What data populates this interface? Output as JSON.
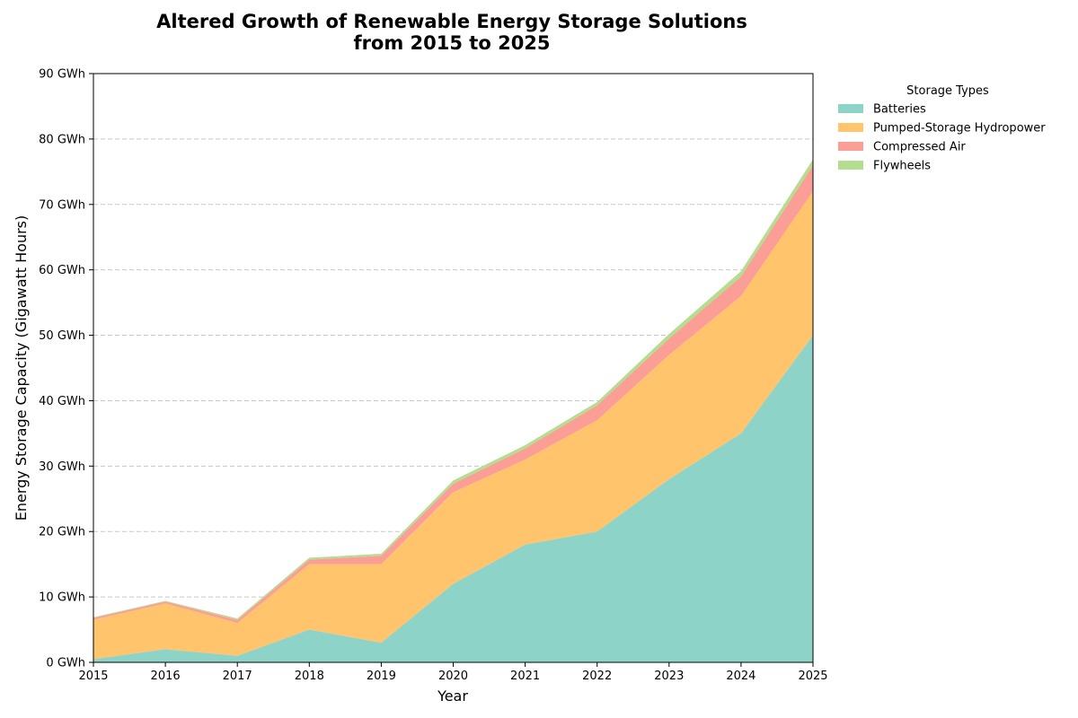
{
  "chart_data": {
    "type": "area",
    "stacked": true,
    "title_lines": [
      "Altered Growth of Renewable Energy Storage Solutions",
      "from 2015 to 2025"
    ],
    "xlabel": "Year",
    "ylabel": "Energy Storage Capacity (Gigawatt Hours)",
    "x": [
      2015,
      2016,
      2017,
      2018,
      2019,
      2020,
      2021,
      2022,
      2023,
      2024,
      2025
    ],
    "x_tick_labels": [
      "2015",
      "2016",
      "2017",
      "2018",
      "2019",
      "2020",
      "2021",
      "2022",
      "2023",
      "2024",
      "2025"
    ],
    "ylim": [
      0,
      90
    ],
    "y_ticks": [
      0,
      10,
      20,
      30,
      40,
      50,
      60,
      70,
      80,
      90
    ],
    "y_tick_labels": [
      "0 GWh",
      "10 GWh",
      "20 GWh",
      "30 GWh",
      "40 GWh",
      "50 GWh",
      "60 GWh",
      "70 GWh",
      "80 GWh",
      "90 GWh"
    ],
    "grid": "horizontal dashed",
    "legend": {
      "title": "Storage Types",
      "placement": "outside-top-right"
    },
    "series": [
      {
        "name": "Batteries",
        "color": "#8dd3c7",
        "values": [
          0.5,
          2,
          1,
          5,
          3,
          12,
          18,
          20,
          28,
          35,
          50
        ]
      },
      {
        "name": "Pumped-Storage Hydropower",
        "color": "#ffc46c",
        "values": [
          6,
          7,
          5,
          10,
          12,
          14,
          13,
          17,
          19,
          21,
          22
        ]
      },
      {
        "name": "Compressed Air",
        "color": "#fb9f96",
        "values": [
          0.3,
          0.3,
          0.5,
          0.7,
          1.3,
          1.3,
          1.7,
          2.3,
          2.5,
          3,
          4
        ]
      },
      {
        "name": "Flywheels",
        "color": "#b3de8f",
        "values": [
          0.1,
          0.1,
          0.2,
          0.3,
          0.3,
          0.5,
          0.5,
          0.5,
          0.7,
          0.8,
          0.9
        ]
      }
    ]
  }
}
